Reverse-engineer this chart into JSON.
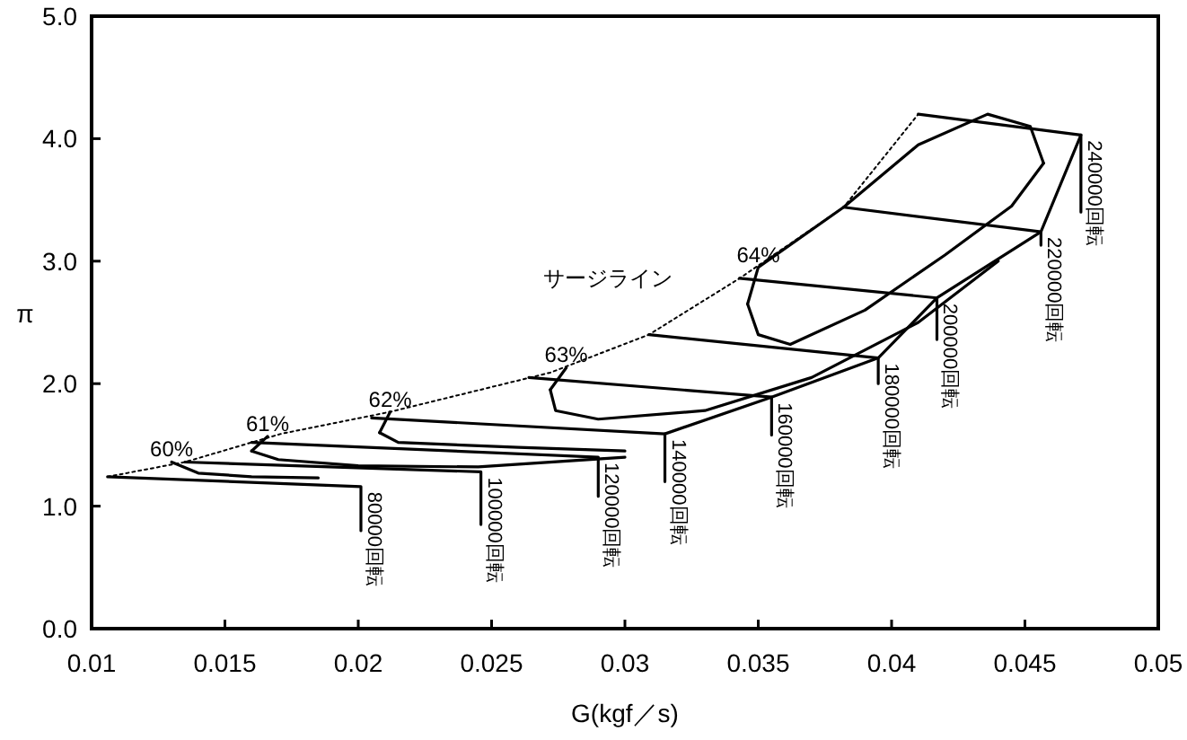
{
  "chart_data": {
    "type": "line",
    "xlabel": "G(kgf／s)",
    "ylabel": "π",
    "xlim": [
      0.01,
      0.05
    ],
    "xticks": [
      0.01,
      0.015,
      0.02,
      0.025,
      0.03,
      0.035,
      0.04,
      0.045,
      0.05
    ],
    "ylim": [
      0,
      5
    ],
    "yticks": [
      {
        "value": 0,
        "label": "0.0"
      },
      {
        "value": 1,
        "label": "1.0"
      },
      {
        "value": 2,
        "label": "2.0"
      },
      {
        "value": 3,
        "label": "3.0"
      },
      {
        "value": 4,
        "label": "4.0"
      },
      {
        "value": 5,
        "label": "5.0"
      }
    ],
    "grid": false,
    "marker": "none",
    "series": [
      {
        "color": "#000000",
        "line_style": "dotted",
        "x": [
          0.0106,
          0.0135,
          0.016,
          0.0171,
          0.0212,
          0.0272,
          0.0309,
          0.0343,
          0.0382,
          0.041
        ],
        "values": [
          1.24,
          1.36,
          1.52,
          1.59,
          1.77,
          2.09,
          2.4,
          2.86,
          3.44,
          4.2
        ]
      },
      {
        "color": "#000000",
        "x": [
          0.0106,
          0.0201,
          0.0201
        ],
        "values": [
          1.24,
          1.16,
          0.8
        ]
      },
      {
        "color": "#000000",
        "x": [
          0.0135,
          0.0246,
          0.0246
        ],
        "values": [
          1.36,
          1.28,
          0.85
        ]
      },
      {
        "color": "#000000",
        "x": [
          0.016,
          0.029,
          0.029
        ],
        "values": [
          1.52,
          1.4,
          1.08
        ]
      },
      {
        "color": "#000000",
        "x": [
          0.0205,
          0.0315,
          0.0315
        ],
        "values": [
          1.72,
          1.59,
          1.2
        ]
      },
      {
        "color": "#000000",
        "x": [
          0.0264,
          0.0355,
          0.0355
        ],
        "values": [
          2.05,
          1.89,
          1.58
        ]
      },
      {
        "color": "#000000",
        "x": [
          0.0309,
          0.0395,
          0.0395
        ],
        "values": [
          2.4,
          2.21,
          2.0
        ]
      },
      {
        "color": "#000000",
        "x": [
          0.0343,
          0.0417,
          0.0417
        ],
        "values": [
          2.86,
          2.7,
          2.36
        ]
      },
      {
        "color": "#000000",
        "x": [
          0.0382,
          0.0456,
          0.0456
        ],
        "values": [
          3.44,
          3.24,
          3.13
        ]
      },
      {
        "color": "#000000",
        "x": [
          0.041,
          0.0471,
          0.0471
        ],
        "values": [
          4.2,
          4.03,
          3.4
        ]
      },
      {
        "color": "#000000",
        "x": [
          0.0315,
          0.0355,
          0.0395,
          0.0417,
          0.0456,
          0.0471
        ],
        "values": [
          1.59,
          1.89,
          2.21,
          2.7,
          3.24,
          4.03
        ]
      },
      {
        "color": "#000000",
        "x": [
          0.0346,
          0.035,
          0.0382,
          0.041,
          0.0436,
          0.0452,
          0.0457
        ],
        "values": [
          2.65,
          2.95,
          3.44,
          3.95,
          4.2,
          4.1,
          3.8
        ]
      },
      {
        "color": "#000000",
        "x": [
          0.0346,
          0.035,
          0.0362,
          0.039,
          0.042,
          0.0445,
          0.0457
        ],
        "values": [
          2.65,
          2.4,
          2.32,
          2.6,
          3.05,
          3.45,
          3.8
        ]
      },
      {
        "color": "#000000",
        "x": [
          0.0272,
          0.0278
        ],
        "values": [
          1.95,
          2.13
        ]
      },
      {
        "color": "#000000",
        "x": [
          0.0272,
          0.0274,
          0.029,
          0.033,
          0.037,
          0.041,
          0.044
        ],
        "values": [
          1.95,
          1.78,
          1.71,
          1.78,
          2.05,
          2.5,
          3.0
        ]
      },
      {
        "color": "#000000",
        "x": [
          0.0208,
          0.0212
        ],
        "values": [
          1.6,
          1.77
        ]
      },
      {
        "color": "#000000",
        "x": [
          0.0208,
          0.0215,
          0.026,
          0.03
        ],
        "values": [
          1.6,
          1.52,
          1.48,
          1.45
        ]
      },
      {
        "color": "#000000",
        "x": [
          0.016,
          0.0166
        ],
        "values": [
          1.45,
          1.57
        ]
      },
      {
        "color": "#000000",
        "x": [
          0.016,
          0.017,
          0.02,
          0.0245,
          0.03
        ],
        "values": [
          1.45,
          1.38,
          1.33,
          1.32,
          1.4
        ]
      },
      {
        "color": "#000000",
        "x": [
          0.013,
          0.014,
          0.016,
          0.0185
        ],
        "values": [
          1.36,
          1.27,
          1.24,
          1.23
        ]
      }
    ],
    "annotations": [
      {
        "text": "60%",
        "x": 0.013,
        "y": 1.36
      },
      {
        "text": "61%",
        "x": 0.0166,
        "y": 1.57
      },
      {
        "text": "62%",
        "x": 0.0212,
        "y": 1.77
      },
      {
        "text": "63%",
        "x": 0.0278,
        "y": 2.13
      },
      {
        "text": "64%",
        "x": 0.035,
        "y": 2.95
      },
      "サージライン",
      {
        "text": "80000回転",
        "x": 0.0201,
        "y": 1.16
      },
      {
        "text": "100000回転",
        "x": 0.0246,
        "y": 1.28
      },
      {
        "text": "120000回転",
        "x": 0.029,
        "y": 1.4
      },
      {
        "text": "140000回転",
        "x": 0.0315,
        "y": 1.59
      },
      {
        "text": "160000回転",
        "x": 0.0355,
        "y": 1.89
      },
      {
        "text": "180000回転",
        "x": 0.0395,
        "y": 2.21
      },
      {
        "text": "200000回転",
        "x": 0.0417,
        "y": 2.7
      },
      {
        "text": "220000回転",
        "x": 0.0456,
        "y": 3.24
      },
      {
        "text": "240000回転",
        "x": 0.0471,
        "y": 4.03
      }
    ]
  }
}
